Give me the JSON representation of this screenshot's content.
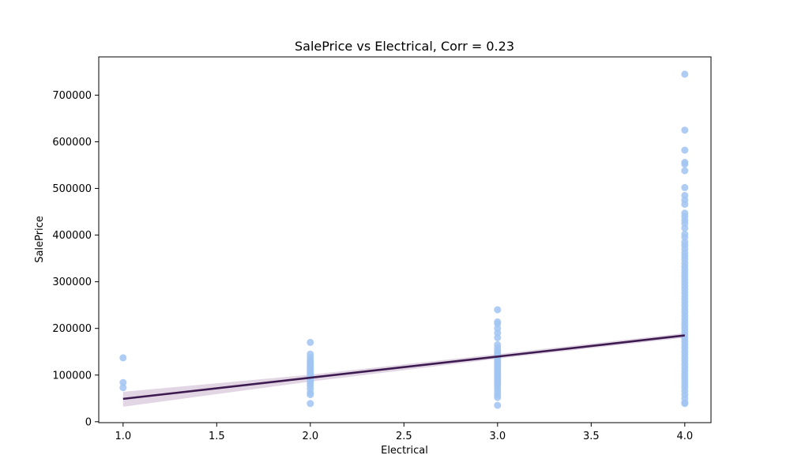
{
  "chart_data": {
    "type": "scatter",
    "title": "SalePrice vs Electrical, Corr = 0.23",
    "xlabel": "Electrical",
    "ylabel": "SalePrice",
    "xlim": [
      0.87,
      4.14
    ],
    "ylim": [
      -2000,
      782000
    ],
    "x_ticks": [
      1.0,
      1.5,
      2.0,
      2.5,
      3.0,
      3.5,
      4.0
    ],
    "x_tick_labels": [
      "1.0",
      "1.5",
      "2.0",
      "2.5",
      "3.0",
      "3.5",
      "4.0"
    ],
    "y_ticks": [
      0,
      100000,
      200000,
      300000,
      400000,
      500000,
      600000,
      700000
    ],
    "y_tick_labels": [
      "0",
      "100000",
      "200000",
      "300000",
      "400000",
      "500000",
      "600000",
      "700000"
    ],
    "grid": false,
    "colors": {
      "points": "#a1c4f2",
      "regression_line": "#3d1a50",
      "confidence_band": "#d8c8dc"
    },
    "series": [
      {
        "type": "scatter",
        "points": [
          [
            1,
            137000
          ],
          [
            1,
            84000
          ],
          [
            1,
            73000
          ],
          [
            2,
            170000
          ],
          [
            2,
            145000
          ],
          [
            2,
            138000
          ],
          [
            2,
            132000
          ],
          [
            2,
            128000
          ],
          [
            2,
            124000
          ],
          [
            2,
            120000
          ],
          [
            2,
            117000
          ],
          [
            2,
            113000
          ],
          [
            2,
            110000
          ],
          [
            2,
            106000
          ],
          [
            2,
            102000
          ],
          [
            2,
            98000
          ],
          [
            2,
            94000
          ],
          [
            2,
            90000
          ],
          [
            2,
            86000
          ],
          [
            2,
            82000
          ],
          [
            2,
            77000
          ],
          [
            2,
            70000
          ],
          [
            2,
            62000
          ],
          [
            2,
            58000
          ],
          [
            2,
            39000
          ],
          [
            3,
            240000
          ],
          [
            3,
            214000
          ],
          [
            3,
            210000
          ],
          [
            3,
            200000
          ],
          [
            3,
            190000
          ],
          [
            3,
            180000
          ],
          [
            3,
            165000
          ],
          [
            3,
            158000
          ],
          [
            3,
            152000
          ],
          [
            3,
            148000
          ],
          [
            3,
            144000
          ],
          [
            3,
            140000
          ],
          [
            3,
            136000
          ],
          [
            3,
            132000
          ],
          [
            3,
            128000
          ],
          [
            3,
            124000
          ],
          [
            3,
            120000
          ],
          [
            3,
            116000
          ],
          [
            3,
            112000
          ],
          [
            3,
            108000
          ],
          [
            3,
            104000
          ],
          [
            3,
            100000
          ],
          [
            3,
            96000
          ],
          [
            3,
            92000
          ],
          [
            3,
            88000
          ],
          [
            3,
            84000
          ],
          [
            3,
            80000
          ],
          [
            3,
            76000
          ],
          [
            3,
            70000
          ],
          [
            3,
            64000
          ],
          [
            3,
            58000
          ],
          [
            3,
            52000
          ],
          [
            3,
            35000
          ],
          [
            4,
            745000
          ],
          [
            4,
            625000
          ],
          [
            4,
            582000
          ],
          [
            4,
            556000
          ],
          [
            4,
            552000
          ],
          [
            4,
            538000
          ],
          [
            4,
            502000
          ],
          [
            4,
            485000
          ],
          [
            4,
            475000
          ],
          [
            4,
            466000
          ],
          [
            4,
            447000
          ],
          [
            4,
            440000
          ],
          [
            4,
            432000
          ],
          [
            4,
            425000
          ],
          [
            4,
            415000
          ],
          [
            4,
            402000
          ],
          [
            4,
            395000
          ],
          [
            4,
            385000
          ],
          [
            4,
            378000
          ],
          [
            4,
            370000
          ],
          [
            4,
            362000
          ],
          [
            4,
            355000
          ],
          [
            4,
            348000
          ],
          [
            4,
            340000
          ],
          [
            4,
            333000
          ],
          [
            4,
            326000
          ],
          [
            4,
            319000
          ],
          [
            4,
            312000
          ],
          [
            4,
            305000
          ],
          [
            4,
            298000
          ],
          [
            4,
            291000
          ],
          [
            4,
            284000
          ],
          [
            4,
            277000
          ],
          [
            4,
            270000
          ],
          [
            4,
            263000
          ],
          [
            4,
            256000
          ],
          [
            4,
            249000
          ],
          [
            4,
            242000
          ],
          [
            4,
            235000
          ],
          [
            4,
            228000
          ],
          [
            4,
            221000
          ],
          [
            4,
            214000
          ],
          [
            4,
            207000
          ],
          [
            4,
            200000
          ],
          [
            4,
            193000
          ],
          [
            4,
            186000
          ],
          [
            4,
            179000
          ],
          [
            4,
            172000
          ],
          [
            4,
            165000
          ],
          [
            4,
            158000
          ],
          [
            4,
            151000
          ],
          [
            4,
            144000
          ],
          [
            4,
            137000
          ],
          [
            4,
            130000
          ],
          [
            4,
            123000
          ],
          [
            4,
            116000
          ],
          [
            4,
            109000
          ],
          [
            4,
            102000
          ],
          [
            4,
            95000
          ],
          [
            4,
            88000
          ],
          [
            4,
            81000
          ],
          [
            4,
            74000
          ],
          [
            4,
            66000
          ],
          [
            4,
            58000
          ],
          [
            4,
            50000
          ],
          [
            4,
            41000
          ],
          [
            4,
            39000
          ]
        ]
      },
      {
        "type": "regression_line",
        "x": [
          1,
          4
        ],
        "y": [
          49000,
          185000
        ]
      },
      {
        "type": "confidence_band",
        "x": [
          1,
          2,
          3,
          4
        ],
        "upper": [
          64000,
          101000,
          145000,
          190000
        ],
        "lower": [
          32000,
          86000,
          135000,
          180000
        ]
      }
    ]
  }
}
